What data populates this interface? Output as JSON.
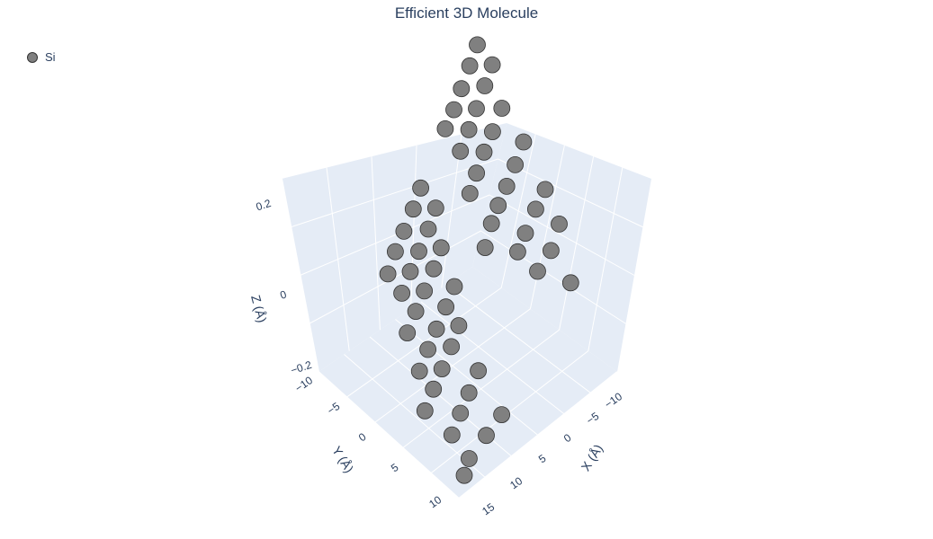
{
  "chart_data": {
    "type": "scatter3d",
    "title": "Efficient 3D Molecule",
    "legend": {
      "placement": "top-left",
      "entries": [
        {
          "name": "Si",
          "color": "#808080"
        }
      ]
    },
    "axes": {
      "x": {
        "label": "X (Å)",
        "ticks": [
          "−10",
          "−5",
          "0",
          "5",
          "10",
          "15"
        ]
      },
      "y": {
        "label": "Y (Å)",
        "ticks": [
          "−10",
          "−5",
          "0",
          "5",
          "10"
        ]
      },
      "z": {
        "label": "Z (Å)",
        "ticks": [
          "−0.2",
          "0",
          "0.2"
        ]
      }
    },
    "grid": true,
    "series": [
      {
        "name": "Si",
        "color": "#808080",
        "points": [
          {
            "x": -13.2,
            "y": -11.2,
            "z": 0.22
          },
          {
            "x": -11.0,
            "y": -9.9,
            "z": 0.22
          },
          {
            "x": -8.6,
            "y": -8.5,
            "z": 0.22
          },
          {
            "x": -6.4,
            "y": -7.2,
            "z": 0.22
          },
          {
            "x": -4.3,
            "y": -6.1,
            "z": 0.22
          },
          {
            "x": -12.3,
            "y": -8.9,
            "z": 0.22
          },
          {
            "x": -10.1,
            "y": -7.6,
            "z": 0.22
          },
          {
            "x": -7.7,
            "y": -6.2,
            "z": 0.22
          },
          {
            "x": -5.5,
            "y": -4.9,
            "z": 0.22
          },
          {
            "x": -3.2,
            "y": -3.6,
            "z": 0.22
          },
          {
            "x": -9.1,
            "y": -5.0,
            "z": 0.22
          },
          {
            "x": -6.6,
            "y": -3.6,
            "z": 0.22
          },
          {
            "x": -4.4,
            "y": -2.4,
            "z": 0.22
          },
          {
            "x": -2.2,
            "y": -1.1,
            "z": 0.22
          },
          {
            "x": -0.1,
            "y": 0.2,
            "z": 0.22
          },
          {
            "x": -7.4,
            "y": -1.3,
            "z": 0.22
          },
          {
            "x": -5.0,
            "y": 0.1,
            "z": 0.22
          },
          {
            "x": -2.7,
            "y": 1.4,
            "z": 0.22
          },
          {
            "x": -0.6,
            "y": 2.5,
            "z": 0.22
          },
          {
            "x": 1.3,
            "y": 3.6,
            "z": 0.22
          },
          {
            "x": 3.7,
            "y": 5.2,
            "z": 0.22
          },
          {
            "x": -4.5,
            "y": 3.5,
            "z": 0.22
          },
          {
            "x": -2.3,
            "y": 4.6,
            "z": 0.22
          },
          {
            "x": 0.3,
            "y": 6.0,
            "z": 0.22
          },
          {
            "x": 2.3,
            "y": 7.1,
            "z": 0.22
          },
          {
            "x": -2.3,
            "y": 6.9,
            "z": 0.22
          },
          {
            "x": 0.4,
            "y": 8.6,
            "z": 0.22
          },
          {
            "x": 2.9,
            "y": 9.6,
            "z": 0.22
          },
          {
            "x": 2.1,
            "y": 12.1,
            "z": 0.22
          },
          {
            "x": -7.0,
            "y": -11.0,
            "z": 0.0
          },
          {
            "x": -4.8,
            "y": -9.7,
            "z": 0.0
          },
          {
            "x": -2.4,
            "y": -8.4,
            "z": 0.0
          },
          {
            "x": -0.2,
            "y": -7.2,
            "z": 0.0
          },
          {
            "x": 2.1,
            "y": -5.8,
            "z": 0.0
          },
          {
            "x": -6.1,
            "y": -8.7,
            "z": 0.0
          },
          {
            "x": -3.9,
            "y": -7.4,
            "z": 0.0
          },
          {
            "x": -1.5,
            "y": -6.1,
            "z": 0.0
          },
          {
            "x": 0.7,
            "y": -4.9,
            "z": 0.0
          },
          {
            "x": 3.0,
            "y": -3.6,
            "z": 0.0
          },
          {
            "x": -3.0,
            "y": -5.3,
            "z": 0.0
          },
          {
            "x": -0.8,
            "y": -4.0,
            "z": 0.0
          },
          {
            "x": 1.6,
            "y": -2.7,
            "z": 0.0
          },
          {
            "x": 3.8,
            "y": -1.5,
            "z": 0.0
          },
          {
            "x": 6.1,
            "y": -0.2,
            "z": 0.0
          },
          {
            "x": -0.4,
            "y": -1.6,
            "z": 0.0
          },
          {
            "x": 1.8,
            "y": -0.4,
            "z": 0.0
          },
          {
            "x": 4.2,
            "y": 0.9,
            "z": 0.0
          },
          {
            "x": 6.4,
            "y": 2.1,
            "z": 0.0
          },
          {
            "x": 8.7,
            "y": 3.4,
            "z": 0.0
          },
          {
            "x": 2.7,
            "y": 1.7,
            "z": 0.0
          },
          {
            "x": 4.9,
            "y": 3.0,
            "z": 0.0
          },
          {
            "x": 7.3,
            "y": 4.3,
            "z": 0.0
          },
          {
            "x": 9.5,
            "y": 5.5,
            "z": 0.0
          },
          {
            "x": 11.8,
            "y": 6.8,
            "z": 0.0
          },
          {
            "x": 8.0,
            "y": 10.8,
            "z": 0.0
          },
          {
            "x": 5.5,
            "y": 6.2,
            "z": 0.0
          },
          {
            "x": 7.9,
            "y": 7.5,
            "z": 0.0
          },
          {
            "x": 10.1,
            "y": 8.7,
            "z": 0.0
          },
          {
            "x": 12.4,
            "y": 10.0,
            "z": 0.0
          },
          {
            "x": 10.6,
            "y": 11.7,
            "z": 0.0
          },
          {
            "x": 13.5,
            "y": 12.7,
            "z": 0.0
          },
          {
            "x": 15.2,
            "y": 13.8,
            "z": 0.0
          }
        ]
      }
    ]
  }
}
